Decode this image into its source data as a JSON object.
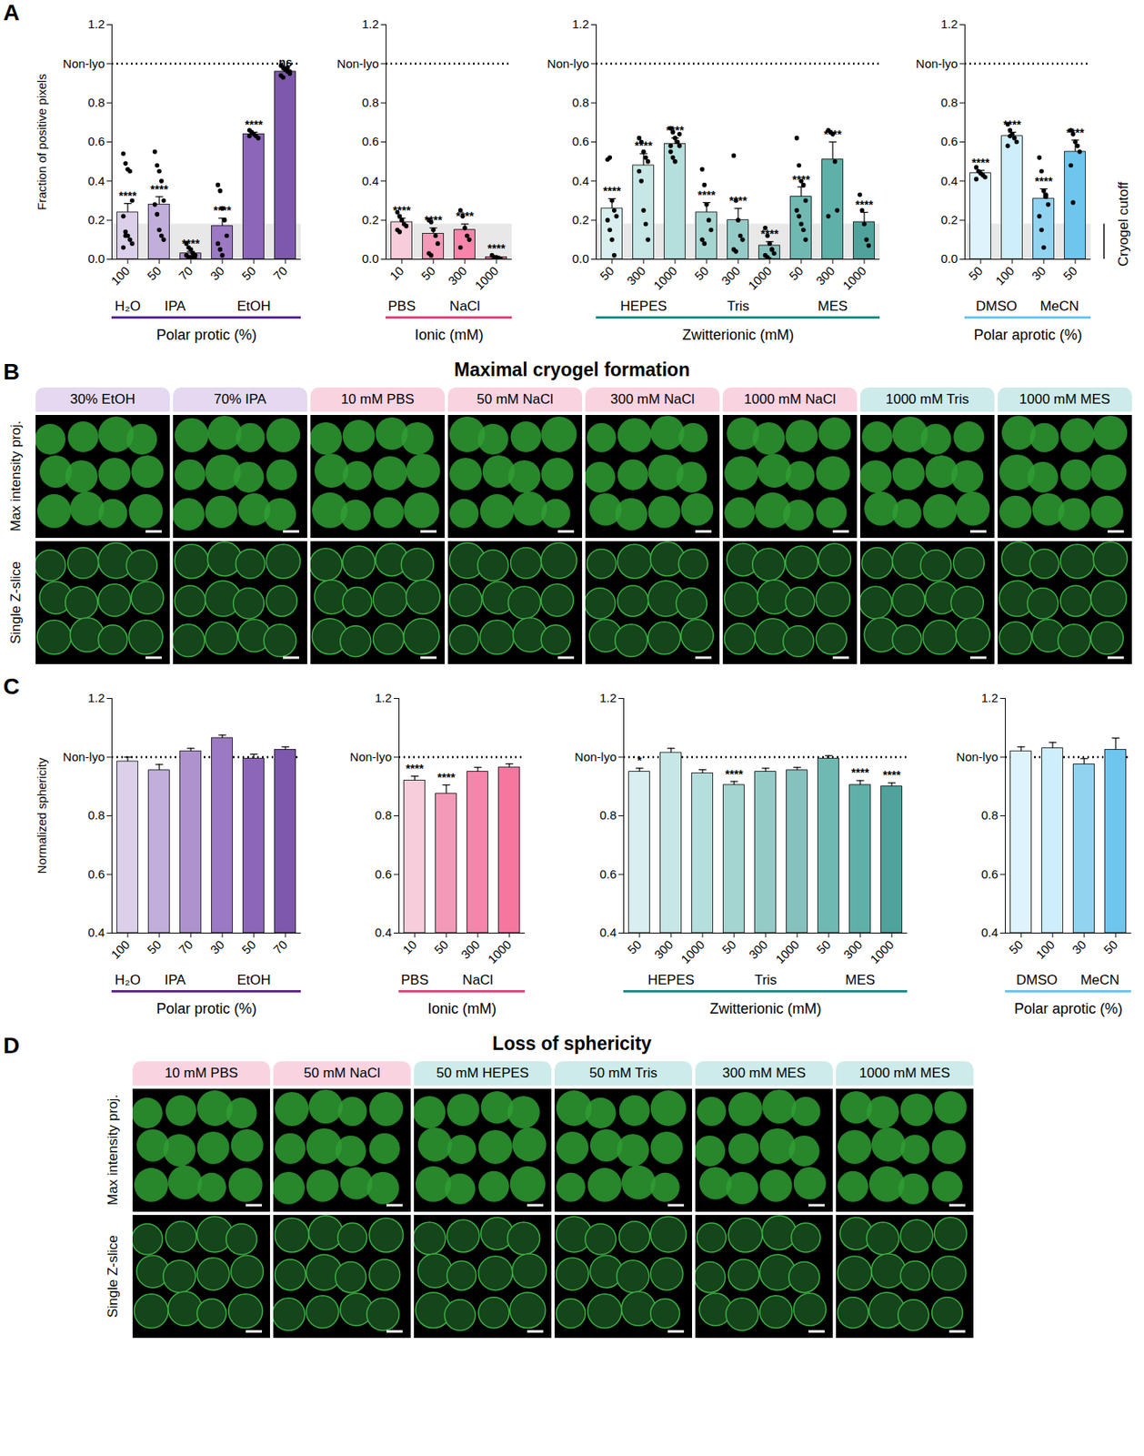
{
  "chart_data": [
    {
      "panel": "A",
      "type": "bar",
      "ylabel": "Fraction of positive pixels",
      "xlabel": "Polar protic (%)",
      "categories": [
        "100",
        "50",
        "70",
        "30",
        "50",
        "70"
      ],
      "groups": [
        "H₂O",
        "IPA",
        "IPA",
        "EtOH",
        "EtOH",
        "EtOH"
      ],
      "values": [
        0.24,
        0.28,
        0.03,
        0.17,
        0.64,
        0.96
      ],
      "errors": [
        0.045,
        0.04,
        0.01,
        0.04,
        0.01,
        0.01
      ],
      "points": [
        [
          0.54,
          0.49,
          0.46,
          0.45,
          0.3,
          0.22,
          0.14,
          0.12,
          0.1,
          0.08,
          0.06,
          0.12
        ],
        [
          0.55,
          0.48,
          0.45,
          0.4,
          0.3,
          0.28,
          0.23,
          0.15,
          0.12,
          0.1
        ],
        [
          0.08,
          0.06,
          0.05,
          0.03,
          0.02,
          0.02,
          0.01,
          0.01,
          0.01,
          0.0
        ],
        [
          0.38,
          0.35,
          0.26,
          0.2,
          0.12,
          0.08,
          0.05,
          0.02
        ],
        [
          0.66,
          0.65,
          0.64,
          0.63,
          0.62,
          0.63
        ],
        [
          0.99,
          0.98,
          0.97,
          0.96,
          0.95,
          0.94,
          0.93,
          0.97,
          0.98,
          0.96
        ]
      ],
      "significance": [
        "****",
        "****",
        "****",
        "****",
        "****",
        "ns"
      ],
      "colors": [
        "#dccfe9",
        "#c2aedb",
        "#ad92cd",
        "#9c79c3",
        "#8c66b8",
        "#7e58ad"
      ],
      "color": "#5b2a91",
      "ylim": [
        0,
        1.2
      ],
      "yticks": [
        {
          "value": 0,
          "label": "0.0"
        },
        0.2,
        0.4,
        0.6,
        0.8,
        {
          "value": 1,
          "label": "Non-lyo"
        },
        1.2
      ],
      "reference_line": 1,
      "band": [
        0,
        0.18
      ]
    },
    {
      "panel": "A",
      "type": "bar",
      "xlabel": "Ionic (mM)",
      "categories": [
        "10",
        "50",
        "300",
        "1000"
      ],
      "groups": [
        "PBS",
        "NaCl",
        "NaCl",
        "NaCl"
      ],
      "values": [
        0.19,
        0.13,
        0.15,
        0.01
      ],
      "errors": [
        0.02,
        0.03,
        0.03,
        0.005
      ],
      "points": [
        [
          0.24,
          0.22,
          0.2,
          0.18,
          0.17,
          0.15,
          0.14
        ],
        [
          0.2,
          0.19,
          0.15,
          0.12,
          0.08,
          0.03,
          0.02
        ],
        [
          0.25,
          0.22,
          0.16,
          0.12,
          0.1,
          0.06
        ],
        [
          0.02,
          0.01,
          0.01,
          0.0,
          0.0
        ]
      ],
      "significance": [
        "****",
        "****",
        "****",
        "****"
      ],
      "colors": [
        "#f7cddc",
        "#f39ab9",
        "#f585aa",
        "#f577a0"
      ],
      "color": "#e0477a",
      "ylim": [
        0,
        1.2
      ],
      "yticks": [
        {
          "value": 0,
          "label": "0.0"
        },
        0.2,
        0.4,
        0.6,
        0.8,
        {
          "value": 1,
          "label": "Non-lyo"
        },
        1.2
      ],
      "reference_line": 1,
      "band": [
        0,
        0.18
      ]
    },
    {
      "panel": "A",
      "type": "bar",
      "xlabel": "Zwitterionic (mM)",
      "categories": [
        "50",
        "300",
        "1000",
        "50",
        "300",
        "1000",
        "50",
        "300",
        "1000"
      ],
      "groups": [
        "HEPES",
        "HEPES",
        "HEPES",
        "Tris",
        "Tris",
        "Tris",
        "MES",
        "MES",
        "MES"
      ],
      "values": [
        0.26,
        0.48,
        0.59,
        0.24,
        0.2,
        0.07,
        0.32,
        0.51,
        0.19
      ],
      "errors": [
        0.05,
        0.06,
        0.03,
        0.05,
        0.06,
        0.02,
        0.05,
        0.09,
        0.05
      ],
      "points": [
        [
          0.51,
          0.52,
          0.3,
          0.25,
          0.22,
          0.2,
          0.15,
          0.1,
          0.02
        ],
        [
          0.62,
          0.6,
          0.55,
          0.52,
          0.5,
          0.45,
          0.4,
          0.25,
          0.18,
          0.1
        ],
        [
          0.67,
          0.65,
          0.62,
          0.6,
          0.58,
          0.55,
          0.52,
          0.5,
          0.6,
          0.64,
          0.58
        ],
        [
          0.46,
          0.38,
          0.28,
          0.2,
          0.15,
          0.1,
          0.08
        ],
        [
          0.53,
          0.3,
          0.2,
          0.12,
          0.1,
          0.05,
          0.04
        ],
        [
          0.16,
          0.12,
          0.08,
          0.05,
          0.03,
          0.02,
          0.01,
          0.0,
          0.05
        ],
        [
          0.62,
          0.48,
          0.4,
          0.38,
          0.3,
          0.25,
          0.22,
          0.18,
          0.15,
          0.1
        ],
        [
          0.66,
          0.65,
          0.64,
          0.5,
          0.25,
          0.22
        ],
        [
          0.33,
          0.25,
          0.18,
          0.1,
          0.07
        ]
      ],
      "significance": [
        "****",
        "****",
        "****",
        "****",
        "****",
        "****",
        "****",
        "****",
        "****"
      ],
      "colors": [
        "#d9efef",
        "#c6e7e5",
        "#b5dfdc",
        "#a5d5d1",
        "#95cbc7",
        "#86c1bd",
        "#70b9b3",
        "#5fb0a9",
        "#4fa39c"
      ],
      "color": "#1a8f8a",
      "ylim": [
        0,
        1.2
      ],
      "yticks": [
        {
          "value": 0,
          "label": "0.0"
        },
        0.2,
        0.4,
        0.6,
        0.8,
        {
          "value": 1,
          "label": "Non-lyo"
        },
        1.2
      ],
      "reference_line": 1,
      "band": [
        0,
        0.18
      ]
    },
    {
      "panel": "A",
      "type": "bar",
      "xlabel": "Polar aprotic (%)",
      "categories": [
        "50",
        "100",
        "30",
        "50"
      ],
      "groups": [
        "DMSO",
        "DMSO",
        "MeCN",
        "MeCN"
      ],
      "values": [
        0.44,
        0.63,
        0.31,
        0.55
      ],
      "errors": [
        0.015,
        0.02,
        0.05,
        0.06
      ],
      "points": [
        [
          0.47,
          0.45,
          0.44,
          0.43,
          0.42,
          0.41
        ],
        [
          0.69,
          0.66,
          0.64,
          0.62,
          0.6,
          0.58,
          0.63
        ],
        [
          0.52,
          0.45,
          0.35,
          0.32,
          0.28,
          0.22,
          0.15,
          0.06,
          0.33
        ],
        [
          0.66,
          0.64,
          0.6,
          0.58,
          0.55,
          0.48,
          0.29
        ]
      ],
      "significance": [
        "****",
        "****",
        "****",
        "****"
      ],
      "colors": [
        "#def3fb",
        "#cdeefa",
        "#92d4f0",
        "#6ec6ee"
      ],
      "color": "#6cc6ee",
      "ylim": [
        0,
        1.2
      ],
      "yticks": [
        {
          "value": 0,
          "label": "0.0"
        },
        0.2,
        0.4,
        0.6,
        0.8,
        {
          "value": 1,
          "label": "Non-lyo"
        },
        1.2
      ],
      "reference_line": 1,
      "band": [
        0,
        0.18
      ],
      "band_label": "Cryogel cutoff"
    },
    {
      "panel": "C",
      "type": "bar",
      "ylabel": "Normalized sphericity",
      "xlabel": "Polar protic (%)",
      "categories": [
        "100",
        "50",
        "70",
        "30",
        "50",
        "70"
      ],
      "groups": [
        "H₂O",
        "IPA",
        "IPA",
        "EtOH",
        "EtOH",
        "EtOH"
      ],
      "values": [
        0.985,
        0.955,
        1.02,
        1.065,
        0.995,
        1.025
      ],
      "errors": [
        0.015,
        0.02,
        0.01,
        0.01,
        0.015,
        0.01
      ],
      "significance": [
        null,
        null,
        null,
        null,
        null,
        null
      ],
      "colors": [
        "#dccfe9",
        "#c2aedb",
        "#ad92cd",
        "#9c79c3",
        "#8c66b8",
        "#7e58ad"
      ],
      "color": "#5b2a91",
      "ylim": [
        0.4,
        1.2
      ],
      "yticks": [
        0.4,
        0.6,
        0.8,
        {
          "value": 1,
          "label": "Non-lyo"
        },
        1.2
      ],
      "reference_line": 1
    },
    {
      "panel": "C",
      "type": "bar",
      "xlabel": "Ionic (mM)",
      "categories": [
        "10",
        "50",
        "300",
        "1000"
      ],
      "groups": [
        "PBS",
        "NaCl",
        "NaCl",
        "NaCl"
      ],
      "values": [
        0.92,
        0.875,
        0.95,
        0.965
      ],
      "errors": [
        0.015,
        0.03,
        0.015,
        0.012
      ],
      "significance": [
        "****",
        "****",
        null,
        null
      ],
      "colors": [
        "#f7cddc",
        "#f39ab9",
        "#f585aa",
        "#f577a0"
      ],
      "color": "#e0477a",
      "ylim": [
        0.4,
        1.2
      ],
      "yticks": [
        0.4,
        0.6,
        0.8,
        {
          "value": 1,
          "label": "Non-lyo"
        },
        1.2
      ],
      "reference_line": 1
    },
    {
      "panel": "C",
      "type": "bar",
      "xlabel": "Zwitterionic (mM)",
      "categories": [
        "50",
        "300",
        "1000",
        "50",
        "300",
        "1000",
        "50",
        "300",
        "1000"
      ],
      "groups": [
        "HEPES",
        "HEPES",
        "HEPES",
        "Tris",
        "Tris",
        "Tris",
        "MES",
        "MES",
        "MES"
      ],
      "values": [
        0.95,
        1.015,
        0.945,
        0.905,
        0.95,
        0.955,
        0.995,
        0.905,
        0.9
      ],
      "errors": [
        0.012,
        0.015,
        0.012,
        0.012,
        0.012,
        0.01,
        0.01,
        0.015,
        0.012
      ],
      "significance": [
        "*",
        null,
        null,
        "****",
        null,
        null,
        null,
        "****",
        "****"
      ],
      "colors": [
        "#d9efef",
        "#c6e7e5",
        "#b5dfdc",
        "#a5d5d1",
        "#95cbc7",
        "#86c1bd",
        "#70b9b3",
        "#5fb0a9",
        "#4fa39c"
      ],
      "color": "#1a8f8a",
      "ylim": [
        0.4,
        1.2
      ],
      "yticks": [
        0.4,
        0.6,
        0.8,
        {
          "value": 1,
          "label": "Non-lyo"
        },
        1.2
      ],
      "reference_line": 1
    },
    {
      "panel": "C",
      "type": "bar",
      "xlabel": "Polar aprotic (%)",
      "categories": [
        "50",
        "100",
        "30",
        "50"
      ],
      "groups": [
        "DMSO",
        "DMSO",
        "MeCN",
        "MeCN"
      ],
      "values": [
        1.02,
        1.03,
        0.975,
        1.025
      ],
      "errors": [
        0.015,
        0.02,
        0.02,
        0.04
      ],
      "significance": [
        null,
        null,
        null,
        null
      ],
      "colors": [
        "#def3fb",
        "#cdeefa",
        "#92d4f0",
        "#6ec6ee"
      ],
      "color": "#6cc6ee",
      "ylim": [
        0.4,
        1.2
      ],
      "yticks": [
        0.4,
        0.6,
        0.8,
        {
          "value": 1,
          "label": "Non-lyo"
        },
        1.2
      ],
      "reference_line": 1
    }
  ],
  "image_panels": [
    {
      "panel": "B",
      "title": "Maximal cryogel formation",
      "rows": [
        "Max intensity proj.",
        "Single Z-slice"
      ],
      "columns": [
        {
          "label": "30% EtOH",
          "color": "#e4d9f0"
        },
        {
          "label": "70% IPA",
          "color": "#e4d9f0"
        },
        {
          "label": "10 mM PBS",
          "color": "#fad3e1"
        },
        {
          "label": "50 mM NaCl",
          "color": "#fad3e1"
        },
        {
          "label": "300 mM NaCl",
          "color": "#fad3e1"
        },
        {
          "label": "1000 mM NaCl",
          "color": "#fad3e1"
        },
        {
          "label": "1000 mM Tris",
          "color": "#cdebea"
        },
        {
          "label": "1000 mM MES",
          "color": "#cdebea"
        }
      ]
    },
    {
      "panel": "D",
      "title": "Loss of sphericity",
      "rows": [
        "Max intensity proj.",
        "Single Z-slice"
      ],
      "columns": [
        {
          "label": "10 mM PBS",
          "color": "#fad3e1"
        },
        {
          "label": "50 mM NaCl",
          "color": "#fad3e1"
        },
        {
          "label": "50 mM HEPES",
          "color": "#cdebea"
        },
        {
          "label": "50 mM Tris",
          "color": "#cdebea"
        },
        {
          "label": "300 mM MES",
          "color": "#cdebea"
        },
        {
          "label": "1000 mM MES",
          "color": "#cdebea"
        }
      ]
    }
  ]
}
